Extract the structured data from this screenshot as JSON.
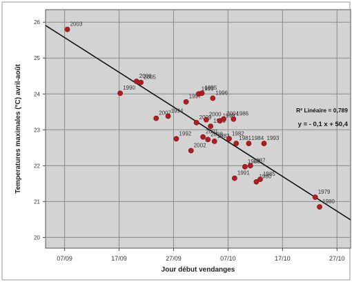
{
  "chart_data": {
    "type": "scatter",
    "title": "",
    "xlabel": "Jour début vendanges",
    "ylabel": "Temperatures maximales (°C) avril-août",
    "x_tick_labels": [
      "07/09",
      "17/09",
      "27/09",
      "07/10",
      "17/10",
      "27/10"
    ],
    "x_ticks_day": [
      0,
      10,
      20,
      30,
      40,
      50
    ],
    "xlim_day": [
      -3.5,
      52.5
    ],
    "y_ticks": [
      20,
      21,
      22,
      23,
      24,
      25,
      26
    ],
    "ylim": [
      19.7,
      26.35
    ],
    "grid": true,
    "plot_background": "#d3d3d3",
    "point_color": "#b01e23",
    "annotation": {
      "lines": [
        "R² Linéaire = 0,789",
        "y = - 0,1 x + 50,4"
      ]
    },
    "fit_line": {
      "day_start": -3.5,
      "y_start": 25.91,
      "day_end": 52.5,
      "y_end": 20.49
    },
    "points": [
      {
        "label": "2003",
        "day": 0.5,
        "y": 25.8
      },
      {
        "label": "1990",
        "day": 10.2,
        "y": 24.02
      },
      {
        "label": "2006",
        "day": 13.2,
        "y": 24.35
      },
      {
        "label": "2005",
        "day": 14.0,
        "y": 24.32
      },
      {
        "label": "2007",
        "day": 16.8,
        "y": 23.32
      },
      {
        "label": "1994",
        "day": 19.0,
        "y": 23.38
      },
      {
        "label": "1992",
        "day": 20.5,
        "y": 22.75
      },
      {
        "label": "1997",
        "day": 22.3,
        "y": 23.78
      },
      {
        "label": "2002",
        "day": 23.2,
        "y": 22.42
      },
      {
        "label": "2009",
        "day": 24.2,
        "y": 23.2
      },
      {
        "label": "1999",
        "day": 24.6,
        "y": 24.0
      },
      {
        "label": "1995",
        "day": 25.2,
        "y": 24.02
      },
      {
        "label": "2001",
        "day": 25.4,
        "y": 22.8
      },
      {
        "label": "2000",
        "day": 26.0,
        "y": 23.28
      },
      {
        "label": "2008",
        "day": 26.3,
        "y": 22.73
      },
      {
        "label": "1989",
        "day": 26.8,
        "y": 23.1
      },
      {
        "label": "1996",
        "day": 27.2,
        "y": 23.88
      },
      {
        "label": "1983",
        "day": 27.5,
        "y": 22.68
      },
      {
        "label": "1998",
        "day": 28.5,
        "y": 23.25
      },
      {
        "label": "2004",
        "day": 29.2,
        "y": 23.3
      },
      {
        "label": "1982",
        "day": 30.2,
        "y": 22.75
      },
      {
        "label": "1986",
        "day": 31.0,
        "y": 23.3
      },
      {
        "label": "1991",
        "day": 31.2,
        "y": 21.65
      },
      {
        "label": "1981",
        "day": 31.5,
        "y": 22.62
      },
      {
        "label": "1988",
        "day": 33.1,
        "y": 21.97
      },
      {
        "label": "1984",
        "day": 33.8,
        "y": 22.62
      },
      {
        "label": "1987",
        "day": 34.1,
        "y": 22.0
      },
      {
        "label": "1980",
        "day": 35.2,
        "y": 21.55
      },
      {
        "label": "1985",
        "day": 35.9,
        "y": 21.62
      },
      {
        "label": "1993",
        "day": 36.6,
        "y": 22.62
      },
      {
        "label": "1979",
        "day": 46.0,
        "y": 21.12
      },
      {
        "label": "1980",
        "day": 46.8,
        "y": 20.85
      }
    ]
  }
}
